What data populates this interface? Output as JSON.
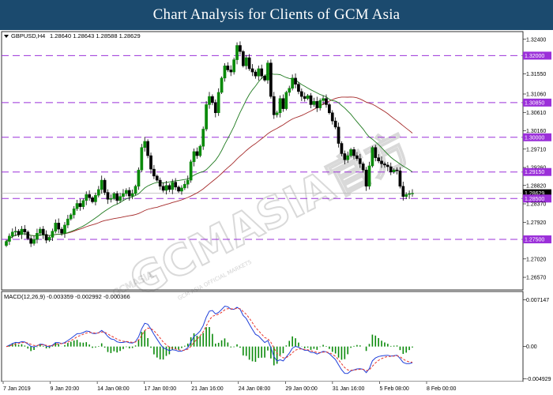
{
  "header": {
    "title": "Chart Analysis for Clients of GCM Asia"
  },
  "watermark": {
    "text": "GCMASIA官方",
    "sub": "GCM ASIA OFFICIAL MARKETS",
    "sub_small": "GCMASIA"
  },
  "chart_data": [
    {
      "type": "candlestick",
      "symbol": "GBPUSD,H4",
      "ohlc_readout": "1.28640 1.28643 1.28588 1.28629",
      "ylim": [
        1.263,
        1.3255
      ],
      "y_ticks": [
        "1.32400",
        "1.32000",
        "1.31550",
        "1.31060",
        "1.30850",
        "1.30610",
        "1.30160",
        "1.30000",
        "1.29710",
        "1.29260",
        "1.29150",
        "1.28820",
        "1.28629",
        "1.28500",
        "1.28370",
        "1.27920",
        "1.27500",
        "1.27020",
        "1.26570"
      ],
      "tick_values": [
        1.324,
        1.32,
        1.3155,
        1.3106,
        1.3085,
        1.3061,
        1.3016,
        1.3,
        1.2971,
        1.2926,
        1.2915,
        1.2882,
        1.28629,
        1.285,
        1.2837,
        1.2792,
        1.275,
        1.2702,
        1.2657
      ],
      "levels": [
        {
          "value": 1.32,
          "label": "1.32000"
        },
        {
          "value": 1.3085,
          "label": "1.30850"
        },
        {
          "value": 1.3,
          "label": "1.30000"
        },
        {
          "value": 1.2915,
          "label": "1.29150"
        },
        {
          "value": 1.285,
          "label": "1.28500"
        },
        {
          "value": 1.275,
          "label": "1.27500"
        }
      ],
      "current_price": {
        "value": 1.28629,
        "label": "1.28629"
      },
      "x_labels": [
        "7 Jan 2019",
        "9 Jan 20:00",
        "14 Jan 08:00",
        "17 Jan 00:00",
        "21 Jan 16:00",
        "24 Jan 08:00",
        "29 Jan 00:00",
        "31 Jan 16:00",
        "5 Feb 08:00",
        "8 Feb 00:00"
      ],
      "closes": [
        1.2745,
        1.2758,
        1.2768,
        1.277,
        1.2762,
        1.2775,
        1.2768,
        1.2752,
        1.274,
        1.275,
        1.2765,
        1.2775,
        1.2762,
        1.2748,
        1.2755,
        1.277,
        1.279,
        1.2775,
        1.2765,
        1.2785,
        1.28,
        1.281,
        1.2825,
        1.2838,
        1.283,
        1.2845,
        1.286,
        1.2852,
        1.2842,
        1.2858,
        1.2872,
        1.2895,
        1.2865,
        1.2848,
        1.285,
        1.2862,
        1.2845,
        1.2855,
        1.2862,
        1.287,
        1.2856,
        1.2862,
        1.288,
        1.292,
        1.2975,
        1.299,
        1.2955,
        1.2922,
        1.2905,
        1.2895,
        1.288,
        1.287,
        1.2882,
        1.2872,
        1.289,
        1.2878,
        1.2868,
        1.2876,
        1.2885,
        1.2895,
        1.294,
        1.2965,
        1.2955,
        1.2978,
        1.302,
        1.308,
        1.31,
        1.3085,
        1.306,
        1.311,
        1.3145,
        1.3175,
        1.3165,
        1.316,
        1.319,
        1.3225,
        1.321,
        1.3175,
        1.3195,
        1.3168,
        1.316,
        1.315,
        1.3168,
        1.315,
        1.314,
        1.3182,
        1.31,
        1.3055,
        1.306,
        1.3095,
        1.307,
        1.311,
        1.312,
        1.3145,
        1.313,
        1.3112,
        1.31,
        1.3095,
        1.3102,
        1.308,
        1.3088,
        1.3072,
        1.309,
        1.3095,
        1.308,
        1.306,
        1.304,
        1.3025,
        1.2985,
        1.296,
        1.2945,
        1.2955,
        1.297,
        1.2955,
        1.2948,
        1.2935,
        1.292,
        1.288,
        1.293,
        1.2975,
        1.295,
        1.2942,
        1.2935,
        1.2932,
        1.2928,
        1.2915,
        1.292,
        1.2918,
        1.288,
        1.2855,
        1.286,
        1.2862,
        1.28629
      ],
      "macd": {
        "label": "MACD(12,26,9) -0.003359 -0.002992 -0.000366",
        "ylim": [
          -0.00525,
          0.00735
        ],
        "y_ticks": [
          "0.007147",
          "0.00",
          "-0.004929"
        ],
        "tick_values": [
          0.007147,
          0.0,
          -0.004929
        ]
      }
    }
  ]
}
